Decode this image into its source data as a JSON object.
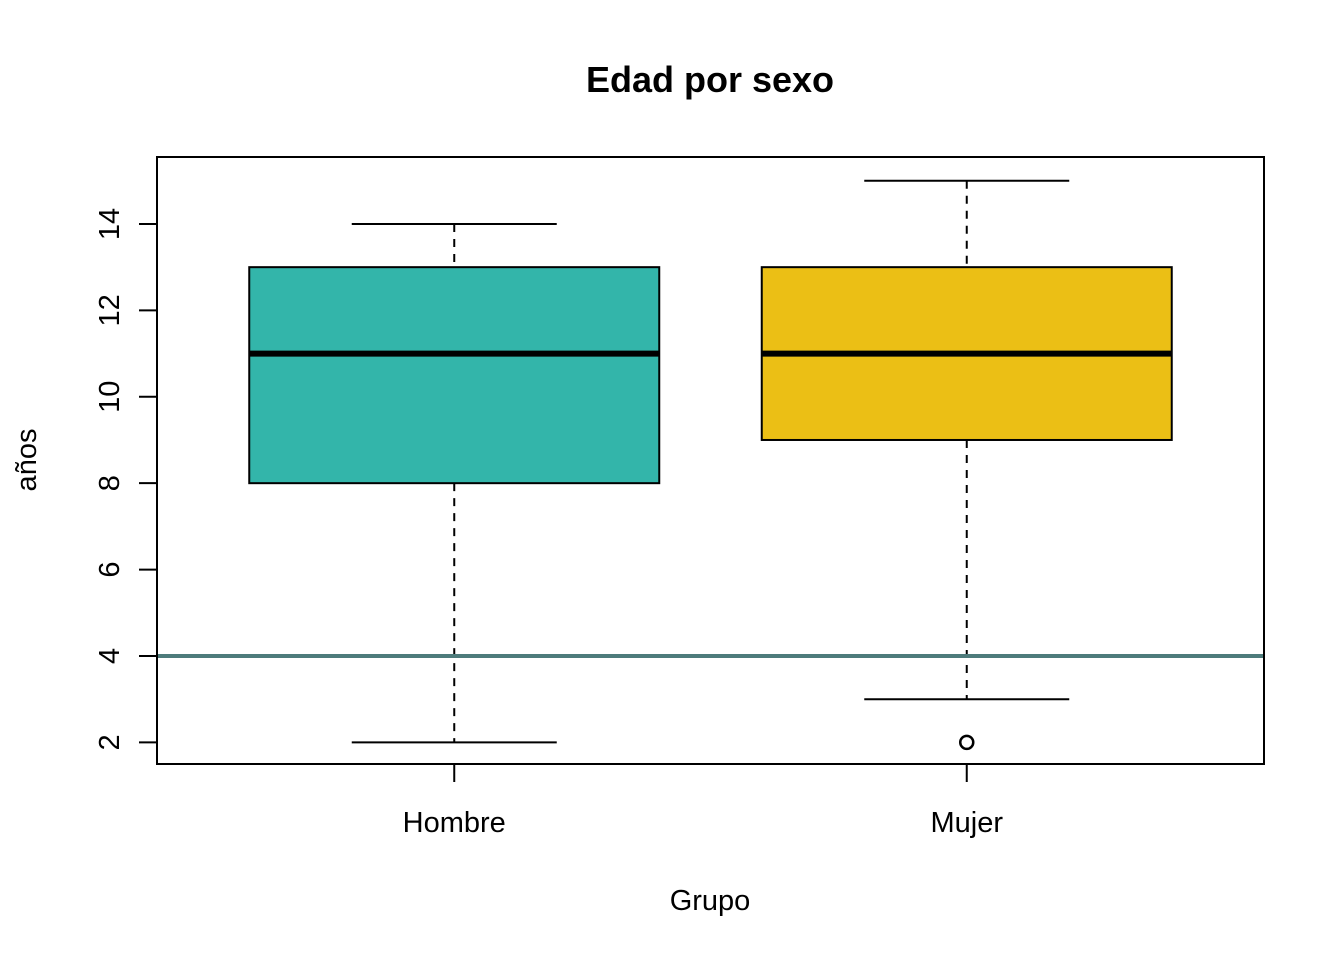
{
  "chart_data": {
    "type": "boxplot",
    "title": "Edad por sexo",
    "xlabel": "Grupo",
    "ylabel": "años",
    "ylim": [
      1.5,
      15.55
    ],
    "yticks": [
      2,
      4,
      6,
      8,
      10,
      12,
      14
    ],
    "categories": [
      "Hombre",
      "Mujer"
    ],
    "boxes": [
      {
        "category": "Hombre",
        "whisker_low": 2,
        "q1": 8,
        "median": 11,
        "q3": 13,
        "whisker_high": 14,
        "outliers": [],
        "color": "#33b5aa"
      },
      {
        "category": "Mujer",
        "whisker_low": 3,
        "q1": 9,
        "median": 11,
        "q3": 13,
        "whisker_high": 15,
        "outliers": [
          2
        ],
        "color": "#ebbf15"
      }
    ],
    "reference_line": {
      "y": 4,
      "color": "#4d7b7b"
    },
    "grid": false,
    "legend": "none"
  }
}
